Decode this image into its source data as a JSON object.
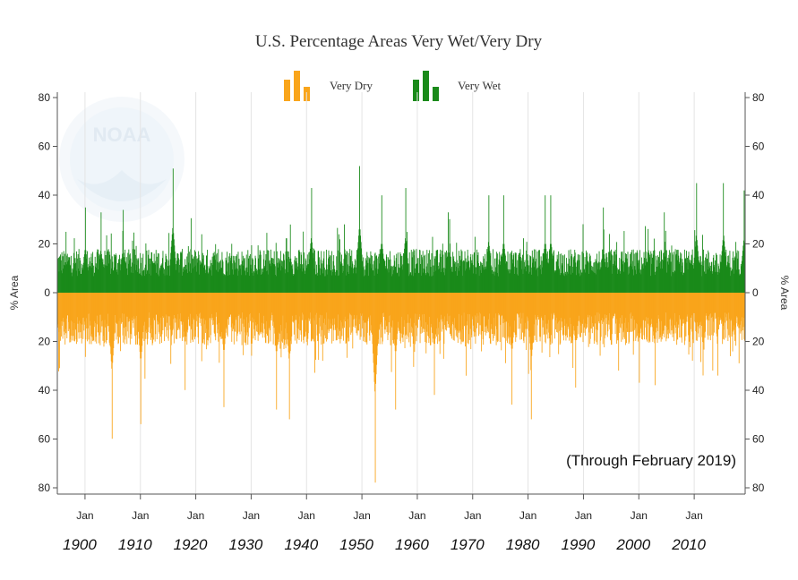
{
  "chart_data": {
    "type": "bar",
    "title": "U.S. Percentage Areas Very Wet/Very Dry",
    "ylabel_left": "% Area",
    "ylabel_right": "% Area",
    "y_axis": {
      "range_wet": [
        0,
        80
      ],
      "range_dry": [
        0,
        80
      ],
      "ticks": [
        "80",
        "60",
        "40",
        "20",
        "0",
        "20",
        "40",
        "60",
        "80"
      ]
    },
    "x_axis": {
      "range_years": [
        1895,
        2019.2
      ],
      "month_tick_label": "Jan",
      "tick_years": [
        1900,
        1910,
        1920,
        1930,
        1940,
        1950,
        1960,
        1970,
        1980,
        1990,
        2000,
        2010
      ],
      "decade_labels": [
        "1900",
        "1910",
        "1920",
        "1930",
        "1940",
        "1950",
        "1960",
        "1970",
        "1980",
        "1990",
        "2000",
        "2010"
      ]
    },
    "legend": [
      {
        "name": "Very Dry",
        "color": "#f9a51b"
      },
      {
        "name": "Very Wet",
        "color": "#1a8a1a"
      }
    ],
    "annotation": "(Through February 2019)",
    "watermark_text": "NOAA",
    "series": [
      {
        "name": "Very Wet",
        "color": "#1a8a1a",
        "typical_percent": 15,
        "peaks": [
          {
            "year": 1896.5,
            "value": 25
          },
          {
            "year": 1900.0,
            "value": 35
          },
          {
            "year": 1902.8,
            "value": 33
          },
          {
            "year": 1906.8,
            "value": 34
          },
          {
            "year": 1915.8,
            "value": 51
          },
          {
            "year": 1921.0,
            "value": 24
          },
          {
            "year": 1937.0,
            "value": 28
          },
          {
            "year": 1940.8,
            "value": 43
          },
          {
            "year": 1949.5,
            "value": 52
          },
          {
            "year": 1953.5,
            "value": 40
          },
          {
            "year": 1957.8,
            "value": 43
          },
          {
            "year": 1965.5,
            "value": 33
          },
          {
            "year": 1972.8,
            "value": 40
          },
          {
            "year": 1975.5,
            "value": 40
          },
          {
            "year": 1983.0,
            "value": 40
          },
          {
            "year": 1984.0,
            "value": 40
          },
          {
            "year": 1993.5,
            "value": 35
          },
          {
            "year": 2004.5,
            "value": 33
          },
          {
            "year": 2010.3,
            "value": 45
          },
          {
            "year": 2015.2,
            "value": 45
          },
          {
            "year": 2018.9,
            "value": 42
          }
        ]
      },
      {
        "name": "Very Dry",
        "color": "#f9a51b",
        "typical_percent": 18,
        "peaks": [
          {
            "year": 1895.3,
            "value": 31
          },
          {
            "year": 1904.8,
            "value": 60
          },
          {
            "year": 1910.0,
            "value": 54
          },
          {
            "year": 1918.0,
            "value": 40
          },
          {
            "year": 1925.0,
            "value": 47
          },
          {
            "year": 1934.5,
            "value": 48
          },
          {
            "year": 1936.8,
            "value": 52
          },
          {
            "year": 1952.3,
            "value": 78
          },
          {
            "year": 1956.0,
            "value": 48
          },
          {
            "year": 1963.0,
            "value": 42
          },
          {
            "year": 1977.0,
            "value": 46
          },
          {
            "year": 1980.5,
            "value": 52
          },
          {
            "year": 1988.5,
            "value": 39
          },
          {
            "year": 2000.0,
            "value": 37
          },
          {
            "year": 2002.8,
            "value": 38
          },
          {
            "year": 2011.5,
            "value": 34
          },
          {
            "year": 2018.0,
            "value": 29
          }
        ]
      }
    ]
  }
}
